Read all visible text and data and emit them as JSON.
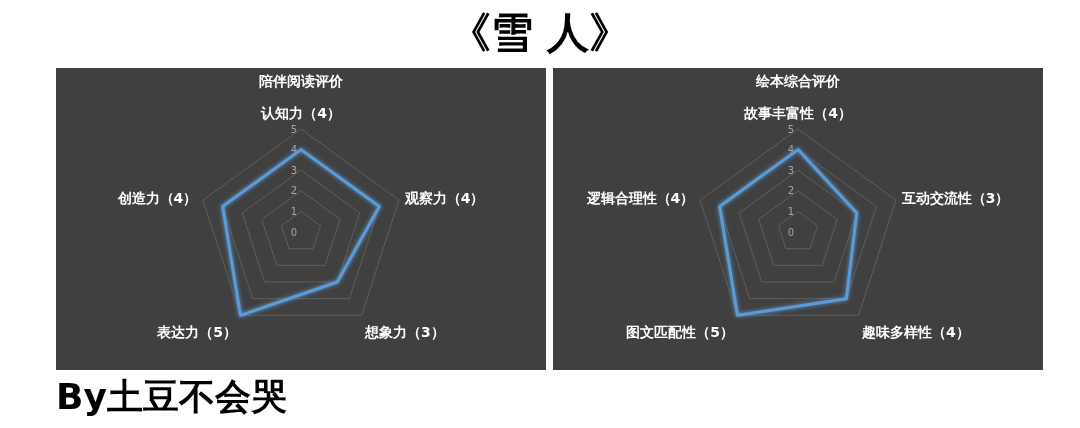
{
  "chart_data": [
    {
      "type": "radar",
      "title": "陪伴阅读评价",
      "annotations": [
        "《雪 人》",
        "By土豆不会哭"
      ],
      "categories": [
        "认知力（4）",
        "观察力（4）",
        "想象力（3）",
        "表达力（5）",
        "创造力（4）"
      ],
      "series": [
        {
          "color": "#5b9bd5",
          "values": [
            4,
            4,
            3,
            5,
            4
          ]
        }
      ],
      "ylim": [
        0,
        5
      ],
      "yticks": [
        0,
        1,
        2,
        3,
        4,
        5
      ],
      "grid": true
    },
    {
      "type": "radar",
      "title": "绘本综合评价",
      "categories": [
        "故事丰富性（4）",
        "互动交流性（3）",
        "趣味多样性（4）",
        "图文匹配性（5）",
        "逻辑合理性（4）"
      ],
      "series": [
        {
          "color": "#5b9bd5",
          "values": [
            4,
            3,
            4,
            5,
            4
          ]
        }
      ],
      "ylim": [
        0,
        5
      ],
      "yticks": [
        0,
        1,
        2,
        3,
        4,
        5
      ],
      "grid": true
    }
  ]
}
